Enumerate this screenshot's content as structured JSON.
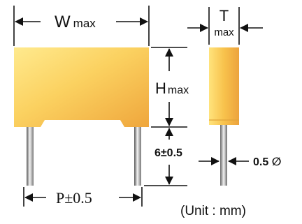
{
  "labels": {
    "width_main": "W",
    "width_sub": "max",
    "thickness_main": "T",
    "thickness_sub": "max",
    "height_main": "H",
    "height_sub": "max",
    "lead_length": "6±0.5",
    "lead_diameter": "0.5 ∅",
    "pitch": "P±0.5",
    "unit_note": "(Unit : mm)"
  },
  "colors": {
    "body_light": "#ffe88a",
    "body_mid": "#f9c54a",
    "body_dark": "#eea23a",
    "lead_light": "#eeeeee",
    "lead_dark": "#666666",
    "line": "#111111"
  }
}
